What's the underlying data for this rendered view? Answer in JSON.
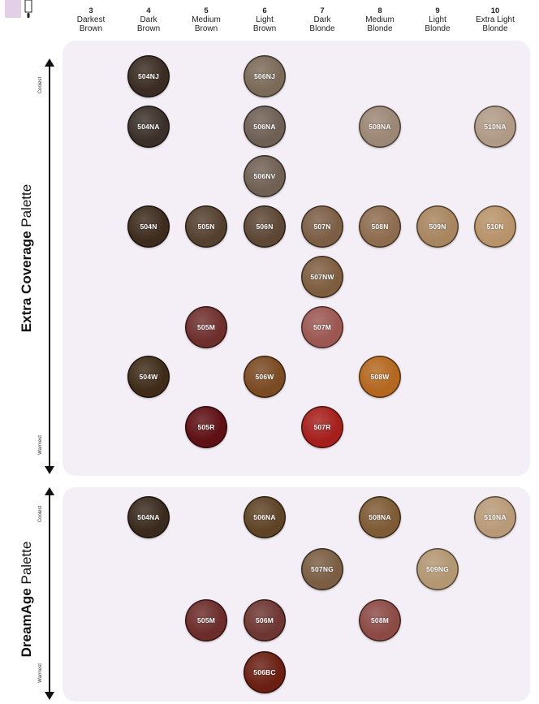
{
  "columns": [
    {
      "level": "3",
      "label": "Darkest\nBrown"
    },
    {
      "level": "4",
      "label": "Dark\nBrown"
    },
    {
      "level": "5",
      "label": "Medium\nBrown"
    },
    {
      "level": "6",
      "label": "Light\nBrown"
    },
    {
      "level": "7",
      "label": "Dark\nBlonde"
    },
    {
      "level": "8",
      "label": "Medium\nBlonde"
    },
    {
      "level": "9",
      "label": "Light\nBlonde"
    },
    {
      "level": "10",
      "label": "Extra Light\nBlonde"
    }
  ],
  "palettes": [
    {
      "title_bold": "Extra Coverage",
      "title_rest": " Palette",
      "coolest_label": "Coolest",
      "warmest_label": "Warmest",
      "swatches": [
        {
          "code": "504NJ",
          "col": 1,
          "row": 0,
          "color": "#3a2c22"
        },
        {
          "code": "506NJ",
          "col": 3,
          "row": 0,
          "color": "#7b6a58"
        },
        {
          "code": "504NA",
          "col": 1,
          "row": 1,
          "color": "#3b3029"
        },
        {
          "code": "506NA",
          "col": 3,
          "row": 1,
          "color": "#6e5f55"
        },
        {
          "code": "508NA",
          "col": 5,
          "row": 1,
          "color": "#9c8674"
        },
        {
          "code": "510NA",
          "col": 7,
          "row": 1,
          "color": "#b09a86"
        },
        {
          "code": "506NV",
          "col": 3,
          "row": 2,
          "color": "#6f6053"
        },
        {
          "code": "504N",
          "col": 1,
          "row": 3,
          "color": "#3d2b1d"
        },
        {
          "code": "505N",
          "col": 2,
          "row": 3,
          "color": "#54402f"
        },
        {
          "code": "506N",
          "col": 3,
          "row": 3,
          "color": "#5d4634"
        },
        {
          "code": "507N",
          "col": 4,
          "row": 3,
          "color": "#7c5e45"
        },
        {
          "code": "508N",
          "col": 5,
          "row": 3,
          "color": "#8e6c4f"
        },
        {
          "code": "509N",
          "col": 6,
          "row": 3,
          "color": "#a7855f"
        },
        {
          "code": "510N",
          "col": 7,
          "row": 3,
          "color": "#b8936a"
        },
        {
          "code": "507NW",
          "col": 4,
          "row": 4,
          "color": "#7e5d3f"
        },
        {
          "code": "505M",
          "col": 2,
          "row": 5,
          "color": "#6e2f2c"
        },
        {
          "code": "507M",
          "col": 4,
          "row": 5,
          "color": "#9c5752"
        },
        {
          "code": "504W",
          "col": 1,
          "row": 6,
          "color": "#3f2b18"
        },
        {
          "code": "506W",
          "col": 3,
          "row": 6,
          "color": "#7a4a22"
        },
        {
          "code": "508W",
          "col": 5,
          "row": 6,
          "color": "#b3671f"
        },
        {
          "code": "505R",
          "col": 2,
          "row": 7,
          "color": "#5e1014"
        },
        {
          "code": "507R",
          "col": 4,
          "row": 7,
          "color": "#a51f1c"
        }
      ]
    },
    {
      "title_bold": "DreamAge",
      "title_rest": " Palette",
      "coolest_label": "Coolest",
      "warmest_label": "Warmest",
      "swatches": [
        {
          "code": "504NA",
          "col": 1,
          "row": 0,
          "color": "#3a2a1d"
        },
        {
          "code": "506NA",
          "col": 3,
          "row": 0,
          "color": "#5e4325"
        },
        {
          "code": "508NA",
          "col": 5,
          "row": 0,
          "color": "#7e5a35"
        },
        {
          "code": "510NA",
          "col": 7,
          "row": 0,
          "color": "#b89a78"
        },
        {
          "code": "507NG",
          "col": 4,
          "row": 1,
          "color": "#7a5d43"
        },
        {
          "code": "509NG",
          "col": 6,
          "row": 1,
          "color": "#b39672"
        },
        {
          "code": "505M",
          "col": 2,
          "row": 2,
          "color": "#6b2c2a"
        },
        {
          "code": "506M",
          "col": 3,
          "row": 2,
          "color": "#6e3632"
        },
        {
          "code": "508M",
          "col": 5,
          "row": 2,
          "color": "#8c4a45"
        },
        {
          "code": "506BC",
          "col": 3,
          "row": 3,
          "color": "#6a1f12"
        }
      ]
    }
  ]
}
